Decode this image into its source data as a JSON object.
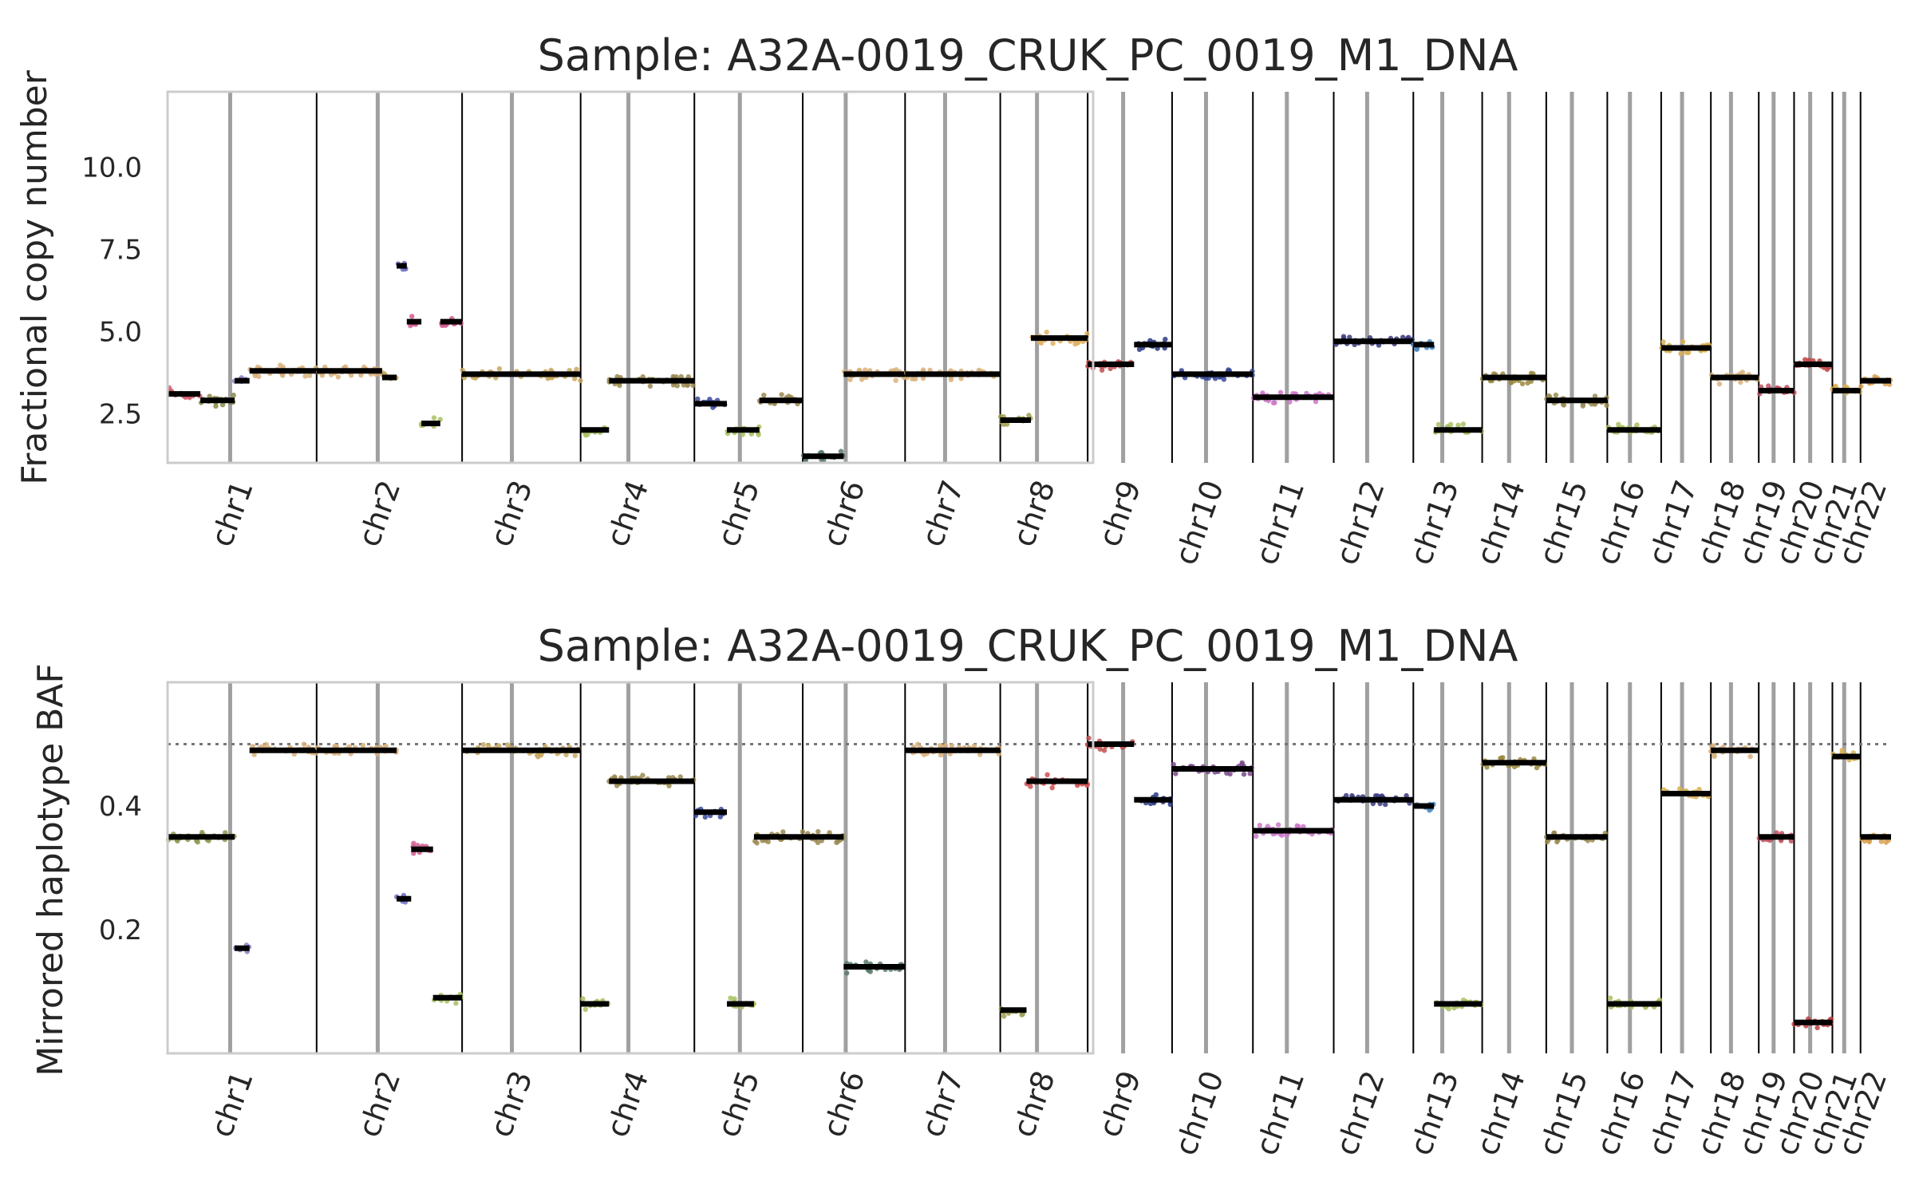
{
  "chart_data": [
    {
      "type": "scatter",
      "title": "Sample: A32A-0019_CRUK_PC_0019_M1_DNA",
      "ylabel": "Fractional copy number",
      "xlabel": "",
      "ylim": [
        1.0,
        12.3
      ],
      "yticks": [
        "2.5",
        "5.0",
        "7.5",
        "10.0"
      ],
      "ytick_values": [
        2.5,
        5.0,
        7.5,
        10.0
      ],
      "grid": false,
      "chromosomes": [
        "chr1",
        "chr2",
        "chr3",
        "chr4",
        "chr5",
        "chr6",
        "chr7",
        "chr8",
        "chr9",
        "chr10",
        "chr11",
        "chr12",
        "chr13",
        "chr14",
        "chr15",
        "chr16",
        "chr17",
        "chr18",
        "chr19",
        "chr20",
        "chr21",
        "chr22"
      ],
      "segments": [
        {
          "chr": "chr1",
          "start": 0.0,
          "end": 0.22,
          "value": 3.1,
          "color": "#d25f6e"
        },
        {
          "chr": "chr1",
          "start": 0.22,
          "end": 0.45,
          "value": 2.9,
          "color": "#8a8a4a"
        },
        {
          "chr": "chr1",
          "start": 0.45,
          "end": 0.55,
          "value": 3.5,
          "color": "#8a7fc4"
        },
        {
          "chr": "chr1",
          "start": 0.55,
          "end": 1.0,
          "value": 3.8,
          "color": "#d9b07a"
        },
        {
          "chr": "chr2",
          "start": 0.0,
          "end": 0.45,
          "value": 3.8,
          "color": "#d9b07a"
        },
        {
          "chr": "chr2",
          "start": 0.45,
          "end": 0.55,
          "value": 3.6,
          "color": "#b8a050"
        },
        {
          "chr": "chr2",
          "start": 0.55,
          "end": 0.62,
          "value": 7.0,
          "color": "#6f6fc7"
        },
        {
          "chr": "chr2",
          "start": 0.62,
          "end": 0.72,
          "value": 5.3,
          "color": "#d45a90"
        },
        {
          "chr": "chr2",
          "start": 0.72,
          "end": 0.85,
          "value": 2.2,
          "color": "#a8c060"
        },
        {
          "chr": "chr2",
          "start": 0.85,
          "end": 1.0,
          "value": 5.3,
          "color": "#d45a90"
        },
        {
          "chr": "chr3",
          "start": 0.0,
          "end": 1.0,
          "value": 3.7,
          "color": "#c8a860"
        },
        {
          "chr": "chr4",
          "start": 0.0,
          "end": 0.25,
          "value": 2.0,
          "color": "#a8c060"
        },
        {
          "chr": "chr4",
          "start": 0.25,
          "end": 1.0,
          "value": 3.5,
          "color": "#9a8a50"
        },
        {
          "chr": "chr5",
          "start": 0.0,
          "end": 0.3,
          "value": 2.8,
          "color": "#3a4a9a"
        },
        {
          "chr": "chr5",
          "start": 0.3,
          "end": 0.6,
          "value": 2.0,
          "color": "#a8c060"
        },
        {
          "chr": "chr5",
          "start": 0.6,
          "end": 1.0,
          "value": 2.9,
          "color": "#9a8a50"
        },
        {
          "chr": "chr6",
          "start": 0.0,
          "end": 0.4,
          "value": 1.2,
          "color": "#5a7a6a"
        },
        {
          "chr": "chr6",
          "start": 0.4,
          "end": 1.0,
          "value": 3.7,
          "color": "#d9b07a"
        },
        {
          "chr": "chr7",
          "start": 0.0,
          "end": 1.0,
          "value": 3.7,
          "color": "#d9b07a"
        },
        {
          "chr": "chr8",
          "start": 0.0,
          "end": 0.35,
          "value": 2.3,
          "color": "#a0a050"
        },
        {
          "chr": "chr8",
          "start": 0.35,
          "end": 1.0,
          "value": 4.8,
          "color": "#e0b060"
        },
        {
          "chr": "chr9",
          "start": 0.0,
          "end": 0.55,
          "value": 4.0,
          "color": "#c05050"
        },
        {
          "chr": "chr9",
          "start": 0.55,
          "end": 1.0,
          "value": 4.6,
          "color": "#2a3a80"
        },
        {
          "chr": "chr10",
          "start": 0.0,
          "end": 1.0,
          "value": 3.7,
          "color": "#3a4a9a"
        },
        {
          "chr": "chr11",
          "start": 0.0,
          "end": 1.0,
          "value": 3.0,
          "color": "#cc77c8"
        },
        {
          "chr": "chr12",
          "start": 0.0,
          "end": 1.0,
          "value": 4.7,
          "color": "#3a3a80"
        },
        {
          "chr": "chr13",
          "start": 0.0,
          "end": 0.3,
          "value": 4.6,
          "color": "#4a8ac0"
        },
        {
          "chr": "chr13",
          "start": 0.3,
          "end": 1.0,
          "value": 2.0,
          "color": "#a8c060"
        },
        {
          "chr": "chr14",
          "start": 0.0,
          "end": 1.0,
          "value": 3.6,
          "color": "#9a8a40"
        },
        {
          "chr": "chr15",
          "start": 0.0,
          "end": 1.0,
          "value": 2.9,
          "color": "#9a8a50"
        },
        {
          "chr": "chr16",
          "start": 0.0,
          "end": 1.0,
          "value": 2.0,
          "color": "#a8c060"
        },
        {
          "chr": "chr17",
          "start": 0.0,
          "end": 1.0,
          "value": 4.5,
          "color": "#d8b050"
        },
        {
          "chr": "chr18",
          "start": 0.0,
          "end": 1.0,
          "value": 3.6,
          "color": "#d9b07a"
        },
        {
          "chr": "chr19",
          "start": 0.0,
          "end": 1.0,
          "value": 3.2,
          "color": "#c05060"
        },
        {
          "chr": "chr20",
          "start": 0.0,
          "end": 1.0,
          "value": 4.0,
          "color": "#c04040"
        },
        {
          "chr": "chr21",
          "start": 0.0,
          "end": 1.0,
          "value": 3.2,
          "color": "#d8b050"
        },
        {
          "chr": "chr22",
          "start": 0.0,
          "end": 1.0,
          "value": 3.5,
          "color": "#d8a050"
        }
      ]
    },
    {
      "type": "scatter",
      "title": "Sample: A32A-0019_CRUK_PC_0019_M1_DNA",
      "ylabel": "Mirrored haplotype BAF",
      "xlabel": "",
      "ylim": [
        0.0,
        0.6
      ],
      "yticks": [
        "0.2",
        "0.4"
      ],
      "ytick_values": [
        0.2,
        0.4
      ],
      "reference_line": 0.5,
      "grid": false,
      "chromosomes": [
        "chr1",
        "chr2",
        "chr3",
        "chr4",
        "chr5",
        "chr6",
        "chr7",
        "chr8",
        "chr9",
        "chr10",
        "chr11",
        "chr12",
        "chr13",
        "chr14",
        "chr15",
        "chr16",
        "chr17",
        "chr18",
        "chr19",
        "chr20",
        "chr21",
        "chr22"
      ],
      "segments": [
        {
          "chr": "chr1",
          "start": 0.0,
          "end": 0.45,
          "value": 0.35,
          "color": "#8a9a50"
        },
        {
          "chr": "chr1",
          "start": 0.45,
          "end": 0.55,
          "value": 0.17,
          "color": "#8a7fc4"
        },
        {
          "chr": "chr1",
          "start": 0.55,
          "end": 1.0,
          "value": 0.49,
          "color": "#d9b07a"
        },
        {
          "chr": "chr2",
          "start": 0.0,
          "end": 0.55,
          "value": 0.49,
          "color": "#d9b07a"
        },
        {
          "chr": "chr2",
          "start": 0.55,
          "end": 0.65,
          "value": 0.25,
          "color": "#6f6fc7"
        },
        {
          "chr": "chr2",
          "start": 0.65,
          "end": 0.8,
          "value": 0.33,
          "color": "#d45a90"
        },
        {
          "chr": "chr2",
          "start": 0.8,
          "end": 1.0,
          "value": 0.09,
          "color": "#a8c060"
        },
        {
          "chr": "chr3",
          "start": 0.0,
          "end": 1.0,
          "value": 0.49,
          "color": "#c8a860"
        },
        {
          "chr": "chr4",
          "start": 0.0,
          "end": 0.25,
          "value": 0.08,
          "color": "#a8c060"
        },
        {
          "chr": "chr4",
          "start": 0.25,
          "end": 1.0,
          "value": 0.44,
          "color": "#9a8a50"
        },
        {
          "chr": "chr5",
          "start": 0.0,
          "end": 0.3,
          "value": 0.39,
          "color": "#3a4a9a"
        },
        {
          "chr": "chr5",
          "start": 0.3,
          "end": 0.55,
          "value": 0.08,
          "color": "#a8c060"
        },
        {
          "chr": "chr5",
          "start": 0.55,
          "end": 1.0,
          "value": 0.35,
          "color": "#9a8a50"
        },
        {
          "chr": "chr6",
          "start": 0.0,
          "end": 0.4,
          "value": 0.35,
          "color": "#9a8a50"
        },
        {
          "chr": "chr6",
          "start": 0.4,
          "end": 1.0,
          "value": 0.14,
          "color": "#5a7a6a"
        },
        {
          "chr": "chr7",
          "start": 0.0,
          "end": 1.0,
          "value": 0.49,
          "color": "#d9b07a"
        },
        {
          "chr": "chr8",
          "start": 0.0,
          "end": 0.3,
          "value": 0.07,
          "color": "#a0a050"
        },
        {
          "chr": "chr8",
          "start": 0.3,
          "end": 1.0,
          "value": 0.44,
          "color": "#d05050"
        },
        {
          "chr": "chr9",
          "start": 0.0,
          "end": 0.55,
          "value": 0.5,
          "color": "#c05050"
        },
        {
          "chr": "chr9",
          "start": 0.55,
          "end": 1.0,
          "value": 0.41,
          "color": "#2a3a80"
        },
        {
          "chr": "chr10",
          "start": 0.0,
          "end": 1.0,
          "value": 0.46,
          "color": "#7a4a8a"
        },
        {
          "chr": "chr11",
          "start": 0.0,
          "end": 1.0,
          "value": 0.36,
          "color": "#cc77c8"
        },
        {
          "chr": "chr12",
          "start": 0.0,
          "end": 1.0,
          "value": 0.41,
          "color": "#3a3a80"
        },
        {
          "chr": "chr13",
          "start": 0.0,
          "end": 0.3,
          "value": 0.4,
          "color": "#4a8ac0"
        },
        {
          "chr": "chr13",
          "start": 0.3,
          "end": 1.0,
          "value": 0.08,
          "color": "#a8c060"
        },
        {
          "chr": "chr14",
          "start": 0.0,
          "end": 1.0,
          "value": 0.47,
          "color": "#9a8a40"
        },
        {
          "chr": "chr15",
          "start": 0.0,
          "end": 1.0,
          "value": 0.35,
          "color": "#9a8a50"
        },
        {
          "chr": "chr16",
          "start": 0.0,
          "end": 1.0,
          "value": 0.08,
          "color": "#a8c060"
        },
        {
          "chr": "chr17",
          "start": 0.0,
          "end": 1.0,
          "value": 0.42,
          "color": "#d8b050"
        },
        {
          "chr": "chr18",
          "start": 0.0,
          "end": 1.0,
          "value": 0.49,
          "color": "#d9b07a"
        },
        {
          "chr": "chr19",
          "start": 0.0,
          "end": 1.0,
          "value": 0.35,
          "color": "#c05060"
        },
        {
          "chr": "chr20",
          "start": 0.0,
          "end": 1.0,
          "value": 0.05,
          "color": "#c04040"
        },
        {
          "chr": "chr21",
          "start": 0.0,
          "end": 1.0,
          "value": 0.48,
          "color": "#d8b050"
        },
        {
          "chr": "chr22",
          "start": 0.0,
          "end": 1.0,
          "value": 0.35,
          "color": "#d8a050"
        }
      ]
    }
  ]
}
